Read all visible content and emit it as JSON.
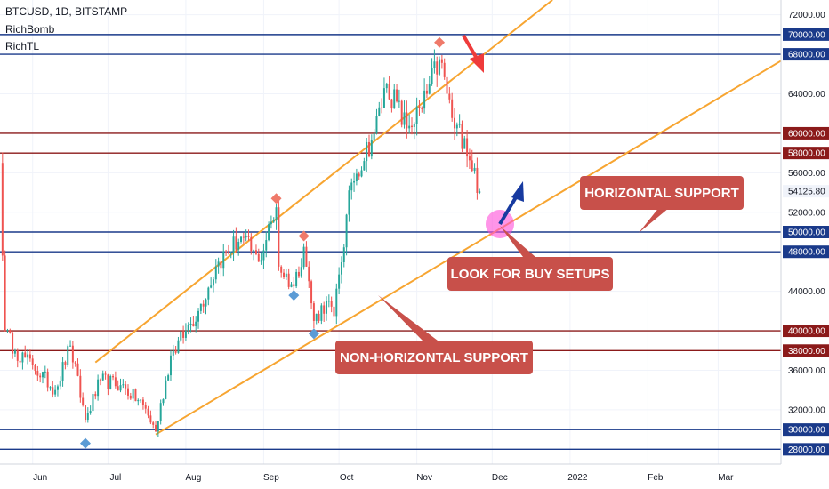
{
  "header": {
    "symbol_line": "BTCUSD, 1D, BITSTAMP",
    "indicator_1": "RichBomb",
    "indicator_2": "RichTL"
  },
  "colors": {
    "up": "#26a69a",
    "down": "#ef5350",
    "trendline": "#f7a531",
    "blue_level": "#1a3a8a",
    "red_level": "#8b1a1a",
    "callout_bg": "#c8504a",
    "current_price_tag": "#f0f3fa",
    "marker_blue": "#5b9bd5",
    "marker_red": "#ef7a6a",
    "highlight_circle": "#ff4fd8",
    "blue_arrow": "#173aa0",
    "red_arrow": "#ef3b3b"
  },
  "chart_data": {
    "type": "candlestick",
    "x_ticks": [
      "Jun",
      "Jul",
      "Aug",
      "Sep",
      "Oct",
      "Nov",
      "Dec",
      "2022",
      "Feb",
      "Mar"
    ],
    "y_ticks": [
      "72000.00",
      "68000.00",
      "64000.00",
      "60000.00",
      "56000.00",
      "52000.00",
      "44000.00",
      "36000.00",
      "32000.00"
    ],
    "y_range": [
      26500,
      73500
    ],
    "current_price": "54125.80",
    "horizontal_levels": [
      {
        "label": "70000.00",
        "value": 70000,
        "color": "blue"
      },
      {
        "label": "68000.00",
        "value": 68000,
        "color": "blue"
      },
      {
        "label": "60000.00",
        "value": 60000,
        "color": "red"
      },
      {
        "label": "58000.00",
        "value": 58000,
        "color": "red"
      },
      {
        "label": "50000.00",
        "value": 50000,
        "color": "blue"
      },
      {
        "label": "48000.00",
        "value": 48000,
        "color": "blue"
      },
      {
        "label": "40000.00",
        "value": 40000,
        "color": "red"
      },
      {
        "label": "38000.00",
        "value": 38000,
        "color": "red"
      },
      {
        "label": "30000.00",
        "value": 30000,
        "color": "blue"
      },
      {
        "label": "28000.00",
        "value": 28000,
        "color": "blue"
      }
    ],
    "close_path": [
      {
        "date": "2021-05-19",
        "close": 57000
      },
      {
        "date": "2021-05-21",
        "close": 40000
      },
      {
        "date": "2021-05-25",
        "close": 38000
      },
      {
        "date": "2021-06-01",
        "close": 36500
      },
      {
        "date": "2021-06-10",
        "close": 34000
      },
      {
        "date": "2021-06-16",
        "close": 38500
      },
      {
        "date": "2021-06-22",
        "close": 31000
      },
      {
        "date": "2021-06-28",
        "close": 35000
      },
      {
        "date": "2021-07-06",
        "close": 34500
      },
      {
        "date": "2021-07-15",
        "close": 32500
      },
      {
        "date": "2021-07-20",
        "close": 29800
      },
      {
        "date": "2021-07-26",
        "close": 37500
      },
      {
        "date": "2021-08-01",
        "close": 40000
      },
      {
        "date": "2021-08-06",
        "close": 42000
      },
      {
        "date": "2021-08-14",
        "close": 47000
      },
      {
        "date": "2021-08-23",
        "close": 49500
      },
      {
        "date": "2021-08-30",
        "close": 47000
      },
      {
        "date": "2021-09-06",
        "close": 52500
      },
      {
        "date": "2021-09-07",
        "close": 46500
      },
      {
        "date": "2021-09-13",
        "close": 44500
      },
      {
        "date": "2021-09-17",
        "close": 48500
      },
      {
        "date": "2021-09-21",
        "close": 41000
      },
      {
        "date": "2021-09-26",
        "close": 43000
      },
      {
        "date": "2021-09-29",
        "close": 41500
      },
      {
        "date": "2021-10-06",
        "close": 55000
      },
      {
        "date": "2021-10-15",
        "close": 60000
      },
      {
        "date": "2021-10-20",
        "close": 65000
      },
      {
        "date": "2021-10-28",
        "close": 60500
      },
      {
        "date": "2021-11-03",
        "close": 62500
      },
      {
        "date": "2021-11-10",
        "close": 67500
      },
      {
        "date": "2021-11-16",
        "close": 60500
      },
      {
        "date": "2021-11-20",
        "close": 59500
      },
      {
        "date": "2021-11-26",
        "close": 54125.8
      }
    ],
    "trendlines": [
      {
        "name": "upper channel",
        "start": {
          "date": "2021-06-26",
          "price": 36800
        },
        "end": {
          "date": "2021-12-25",
          "price": 73500
        }
      },
      {
        "name": "lower channel",
        "start": {
          "date": "2021-07-20",
          "price": 29500
        },
        "end": {
          "date": "2022-03-31",
          "price": 68100
        }
      }
    ],
    "markers": [
      {
        "type": "diamond",
        "color": "blue",
        "date": "2021-06-22",
        "price": 28600
      },
      {
        "type": "diamond",
        "color": "red",
        "date": "2021-09-06",
        "price": 53400
      },
      {
        "type": "diamond",
        "color": "blue",
        "date": "2021-09-13",
        "price": 43600
      },
      {
        "type": "diamond",
        "color": "red",
        "date": "2021-09-17",
        "price": 49600
      },
      {
        "type": "diamond",
        "color": "blue",
        "date": "2021-09-21",
        "price": 39700
      },
      {
        "type": "diamond",
        "color": "red",
        "date": "2021-11-10",
        "price": 69200
      }
    ]
  },
  "annotations": {
    "horizontal_support": "HORIZONTAL SUPPORT",
    "look_for_buy": "LOOK FOR BUY SETUPS",
    "non_horizontal_support": "NON-HORIZONTAL SUPPORT"
  }
}
